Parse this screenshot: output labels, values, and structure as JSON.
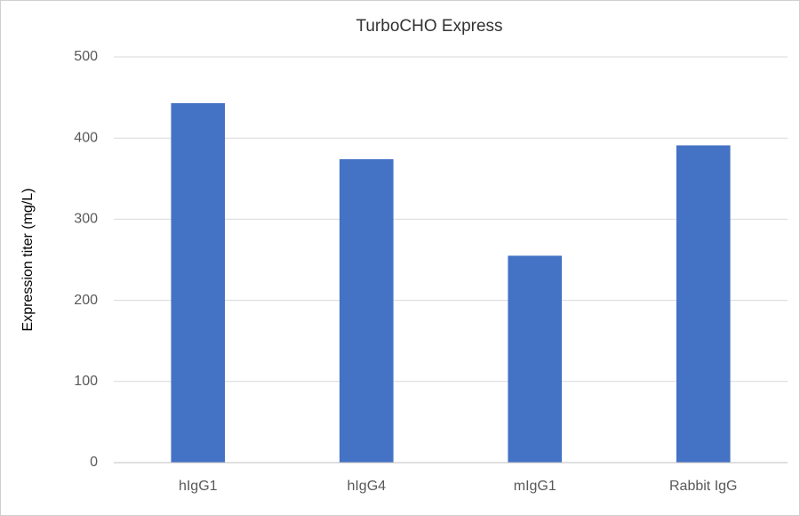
{
  "chart_data": {
    "type": "bar",
    "title": "TurboCHO Express",
    "y_label": "Expression titer (mg/L)",
    "categories": [
      "hIgG1",
      "hIgG4",
      "mIgG1",
      "Rabbit IgG"
    ],
    "values": [
      443,
      374,
      255,
      391
    ],
    "color": "#4472c4",
    "ylim": [
      0,
      500
    ],
    "yticks": [
      0,
      100,
      200,
      300,
      400,
      500
    ],
    "grid": true
  }
}
